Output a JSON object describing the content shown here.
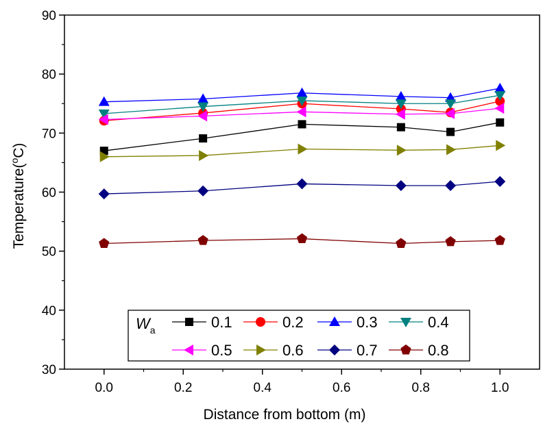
{
  "chart_data": {
    "type": "line",
    "xlabel": "Distance from bottom (m)",
    "ylabel_main": "Temperature(",
    "ylabel_sup": "o",
    "ylabel_end": "C)",
    "xlim": [
      -0.1,
      1.1
    ],
    "ylim": [
      30,
      90
    ],
    "xticks": [
      "0.0",
      "0.2",
      "0.4",
      "0.6",
      "0.8",
      "1.0"
    ],
    "yticks": [
      "30",
      "40",
      "50",
      "60",
      "70",
      "80",
      "90"
    ],
    "x": [
      0.0,
      0.25,
      0.5,
      0.75,
      0.875,
      1.0
    ],
    "legend_title_main": "W",
    "legend_title_sub": "a",
    "legend_position": "bottom-center",
    "grid": false,
    "series": [
      {
        "name": "0.1",
        "marker": "square",
        "color": "#000000",
        "values": [
          67.0,
          69.1,
          71.5,
          71.0,
          70.2,
          71.8
        ]
      },
      {
        "name": "0.2",
        "marker": "circle",
        "color": "#ff0000",
        "values": [
          72.1,
          73.4,
          75.0,
          74.1,
          73.5,
          75.4
        ]
      },
      {
        "name": "0.3",
        "marker": "triangle-up",
        "color": "#0000ff",
        "values": [
          75.3,
          75.8,
          76.8,
          76.2,
          76.0,
          77.6
        ]
      },
      {
        "name": "0.4",
        "marker": "triangle-down",
        "color": "#008080",
        "values": [
          73.3,
          74.5,
          75.5,
          75.0,
          75.0,
          76.4
        ]
      },
      {
        "name": "0.5",
        "marker": "triangle-left",
        "color": "#ff00ff",
        "values": [
          72.3,
          72.9,
          73.6,
          73.2,
          73.3,
          74.2
        ]
      },
      {
        "name": "0.6",
        "marker": "triangle-right",
        "color": "#808000",
        "values": [
          66.0,
          66.2,
          67.3,
          67.1,
          67.2,
          67.9
        ]
      },
      {
        "name": "0.7",
        "marker": "diamond",
        "color": "#000080",
        "values": [
          59.7,
          60.2,
          61.4,
          61.1,
          61.1,
          61.8
        ]
      },
      {
        "name": "0.8",
        "marker": "pentagon",
        "color": "#800000",
        "values": [
          51.3,
          51.8,
          52.1,
          51.3,
          51.6,
          51.8
        ]
      }
    ]
  }
}
